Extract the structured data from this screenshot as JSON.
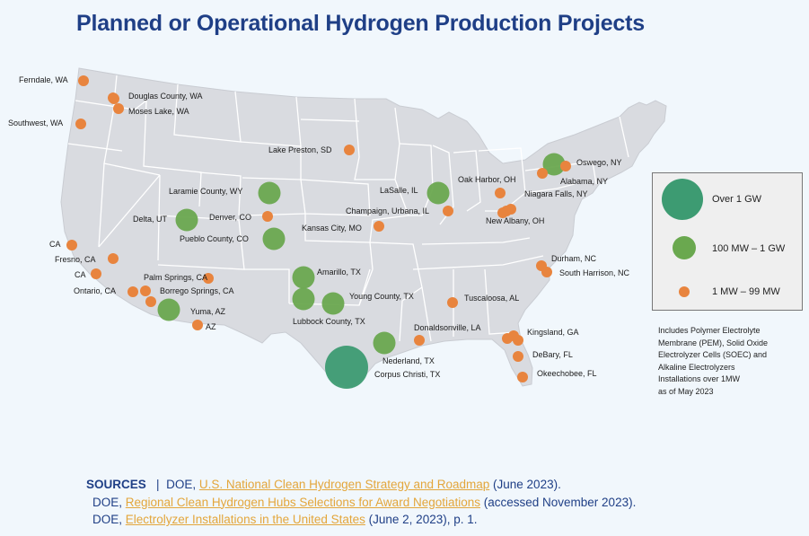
{
  "title": "Planned or Operational Hydrogen Production Projects",
  "colors": {
    "title": "#1f3f86",
    "over_1gw": "#3d9b72",
    "mw100_1gw": "#6aa84f",
    "mw1_99": "#e8843e",
    "map_fill": "#d9dbe0",
    "state_border": "#ffffff",
    "link": "#e3a63b"
  },
  "legend": {
    "items": [
      {
        "label": "Over 1 GW",
        "category": "over_1gw"
      },
      {
        "label": "100 MW – 1 GW",
        "category": "mw100_1gw"
      },
      {
        "label": "1 MW – 99 MW",
        "category": "mw1_99"
      }
    ]
  },
  "note": {
    "lines": [
      "Includes Polymer Electrolyte",
      "Membrane (PEM), Solid Oxide",
      "Electrolyzer Cells (SOEC) and",
      "Alkaline Electrolyzers",
      "Installations over 1MW",
      "as of May 2023"
    ]
  },
  "sources": {
    "label": "SOURCES",
    "separator": "|",
    "entries": [
      {
        "prefix": "DOE, ",
        "link_text": "U.S. National Clean Hydrogen Strategy and Roadmap",
        "suffix": " (June 2023)."
      },
      {
        "prefix": "DOE, ",
        "link_text": "Regional Clean Hydrogen Hubs Selections for Award Negotiations",
        "suffix": " (accessed November 2023)."
      },
      {
        "prefix": "DOE, ",
        "link_text": "Electrolyzer Installations in the United States",
        "suffix": " (June 2, 2023), p. 1."
      }
    ]
  },
  "projects": [
    {
      "name": "Ferndale, WA",
      "category": "mw1_99"
    },
    {
      "name": "Douglas County, WA",
      "category": "mw1_99"
    },
    {
      "name": "Moses Lake, WA",
      "category": "mw1_99"
    },
    {
      "name": "Southwest, WA",
      "category": "mw1_99"
    },
    {
      "name": "Lake Preston, SD",
      "category": "mw1_99"
    },
    {
      "name": "Laramie County, WY",
      "category": "mw100_1gw"
    },
    {
      "name": "Delta, UT",
      "category": "mw100_1gw"
    },
    {
      "name": "Denver, CO",
      "category": "mw1_99"
    },
    {
      "name": "Pueblo County, CO",
      "category": "mw100_1gw"
    },
    {
      "name": "Kansas City, MO",
      "category": "mw1_99"
    },
    {
      "name": "LaSalle, IL",
      "category": "mw100_1gw"
    },
    {
      "name": "Champaign, Urbana, IL",
      "category": "mw1_99"
    },
    {
      "name": "Oak Harbor, OH",
      "category": "mw1_99"
    },
    {
      "name": "New Albany, OH",
      "category": "mw1_99"
    },
    {
      "name": "Niagara Falls, NY",
      "category": "mw1_99"
    },
    {
      "name": "Alabama, NY",
      "category": "mw100_1gw"
    },
    {
      "name": "Oswego, NY",
      "category": "mw1_99"
    },
    {
      "name": "CA",
      "category": "mw1_99"
    },
    {
      "name": "Fresno, CA",
      "category": "mw1_99"
    },
    {
      "name": "CA",
      "category": "mw1_99"
    },
    {
      "name": "Ontario, CA",
      "category": "mw1_99"
    },
    {
      "name": "Palm Springs, CA",
      "category": "mw1_99"
    },
    {
      "name": "Borrego Springs, CA",
      "category": "mw1_99"
    },
    {
      "name": "Yuma, AZ",
      "category": "mw100_1gw"
    },
    {
      "name": "AZ",
      "category": "mw1_99"
    },
    {
      "name": "Amarillo, TX",
      "category": "mw100_1gw"
    },
    {
      "name": "Lubbock County, TX",
      "category": "mw100_1gw"
    },
    {
      "name": "Young County, TX",
      "category": "mw100_1gw"
    },
    {
      "name": "Tuscaloosa, AL",
      "category": "mw1_99"
    },
    {
      "name": "Durham, NC",
      "category": "mw1_99"
    },
    {
      "name": "South Harrison, NC",
      "category": "mw1_99"
    },
    {
      "name": "Donaldsonville, LA",
      "category": "mw1_99"
    },
    {
      "name": "Nederland, TX",
      "category": "mw100_1gw"
    },
    {
      "name": "Corpus Christi, TX",
      "category": "over_1gw"
    },
    {
      "name": "Kingsland, GA",
      "category": "mw1_99"
    },
    {
      "name": "DeBary, FL",
      "category": "mw1_99"
    },
    {
      "name": "Okeechobee, FL",
      "category": "mw1_99"
    }
  ]
}
